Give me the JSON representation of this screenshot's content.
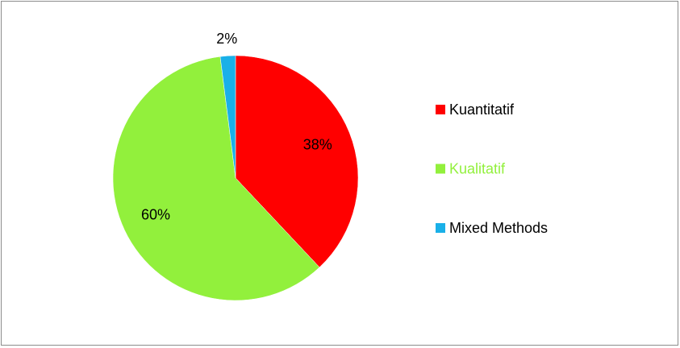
{
  "chart_data": {
    "type": "pie",
    "categories": [
      "Kuantitatif",
      "Kualitatif",
      "Mixed Methods"
    ],
    "values": [
      38,
      60,
      2
    ],
    "value_labels": [
      "38%",
      "60%",
      "2%"
    ],
    "colors": [
      "#ff0000",
      "#92f03c",
      "#1ab0e8"
    ],
    "legend_label_colors": [
      "#000000",
      "#92f03c",
      "#000000"
    ],
    "legend": "right"
  }
}
